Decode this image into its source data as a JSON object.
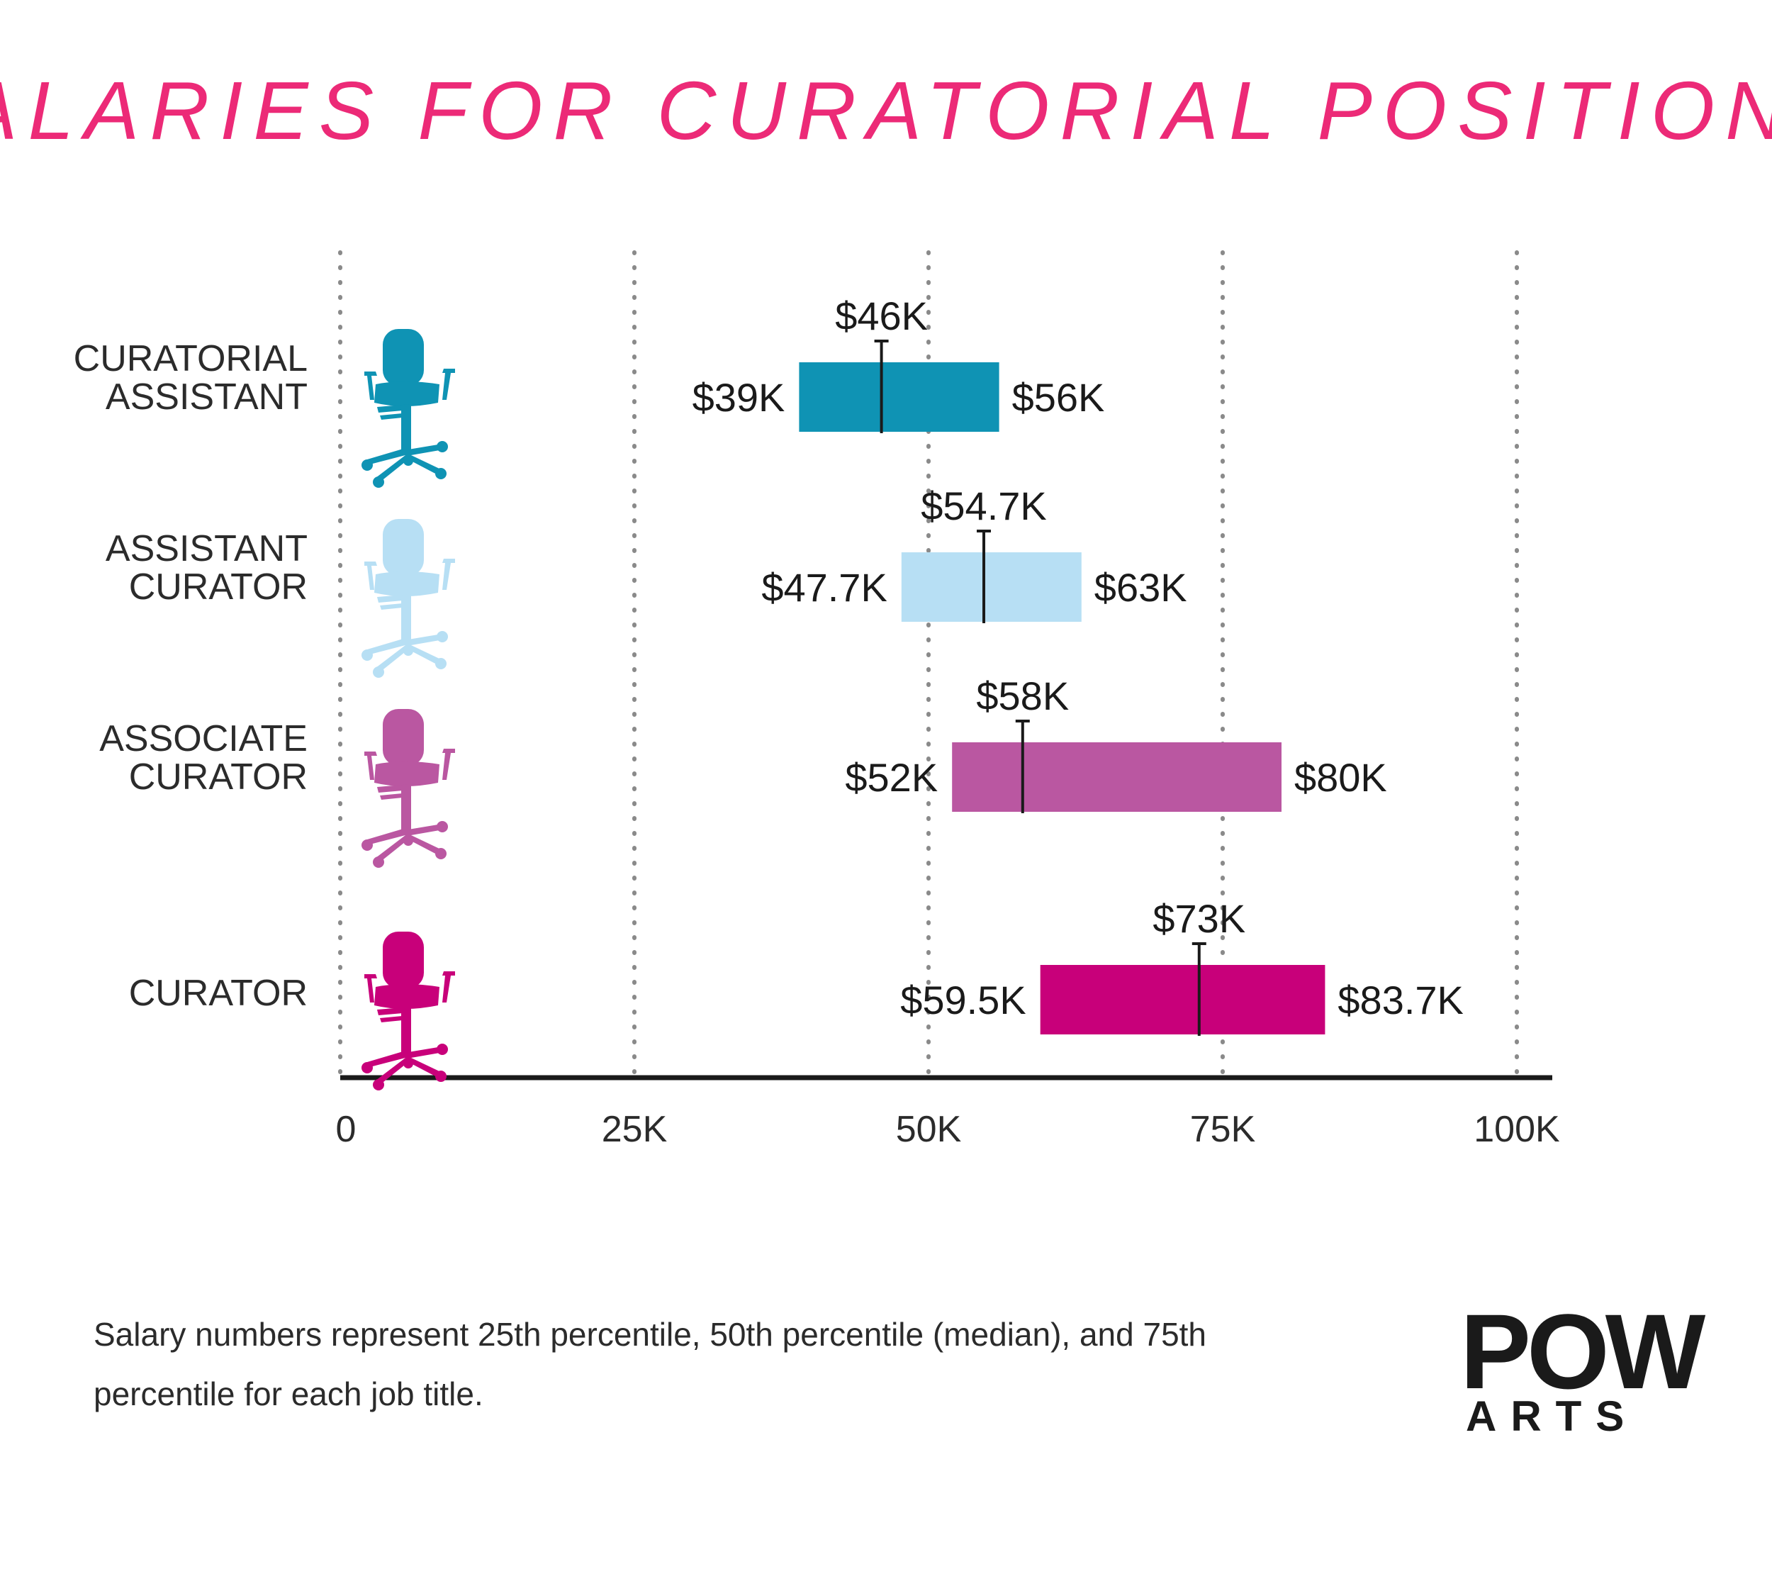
{
  "chart_data": {
    "type": "bar",
    "title": "SALARIES FOR CURATORIAL POSITIONS",
    "xlim": [
      0,
      100000
    ],
    "x_ticks": [
      {
        "value": 0,
        "label": "0"
      },
      {
        "value": 25000,
        "label": "25K"
      },
      {
        "value": 50000,
        "label": "50K"
      },
      {
        "value": 75000,
        "label": "75K"
      },
      {
        "value": 100000,
        "label": "100K"
      }
    ],
    "grid": true,
    "categories": [
      {
        "lines": [
          "CURATORIAL",
          "ASSISTANT"
        ],
        "color": "#0f93b4",
        "icon": "office-chair-icon",
        "p25": 39000,
        "median": 46000,
        "p75": 56000,
        "p25_label": "$39K",
        "median_label": "$46K",
        "p75_label": "$56K"
      },
      {
        "lines": [
          "ASSISTANT",
          "CURATOR"
        ],
        "color": "#b7dff4",
        "icon": "office-chair-icon",
        "p25": 47700,
        "median": 54700,
        "p75": 63000,
        "p25_label": "$47.7K",
        "median_label": "$54.7K",
        "p75_label": "$63K"
      },
      {
        "lines": [
          "ASSOCIATE",
          "CURATOR"
        ],
        "color": "#ba57a1",
        "icon": "office-chair-icon",
        "p25": 52000,
        "median": 58000,
        "p75": 80000,
        "p25_label": "$52K",
        "median_label": "$58K",
        "p75_label": "$80K"
      },
      {
        "lines": [
          "CURATOR"
        ],
        "color": "#c8007a",
        "icon": "office-chair-icon",
        "p25": 59500,
        "median": 73000,
        "p75": 83700,
        "p25_label": "$59.5K",
        "median_label": "$73K",
        "p75_label": "$83.7K"
      }
    ]
  },
  "footnote": {
    "line1": "Salary numbers represent 25th percentile, 50th percentile (median), and 75th",
    "line2": "percentile for each job title."
  },
  "logo": {
    "main": "POW",
    "sub": "ARTS"
  }
}
